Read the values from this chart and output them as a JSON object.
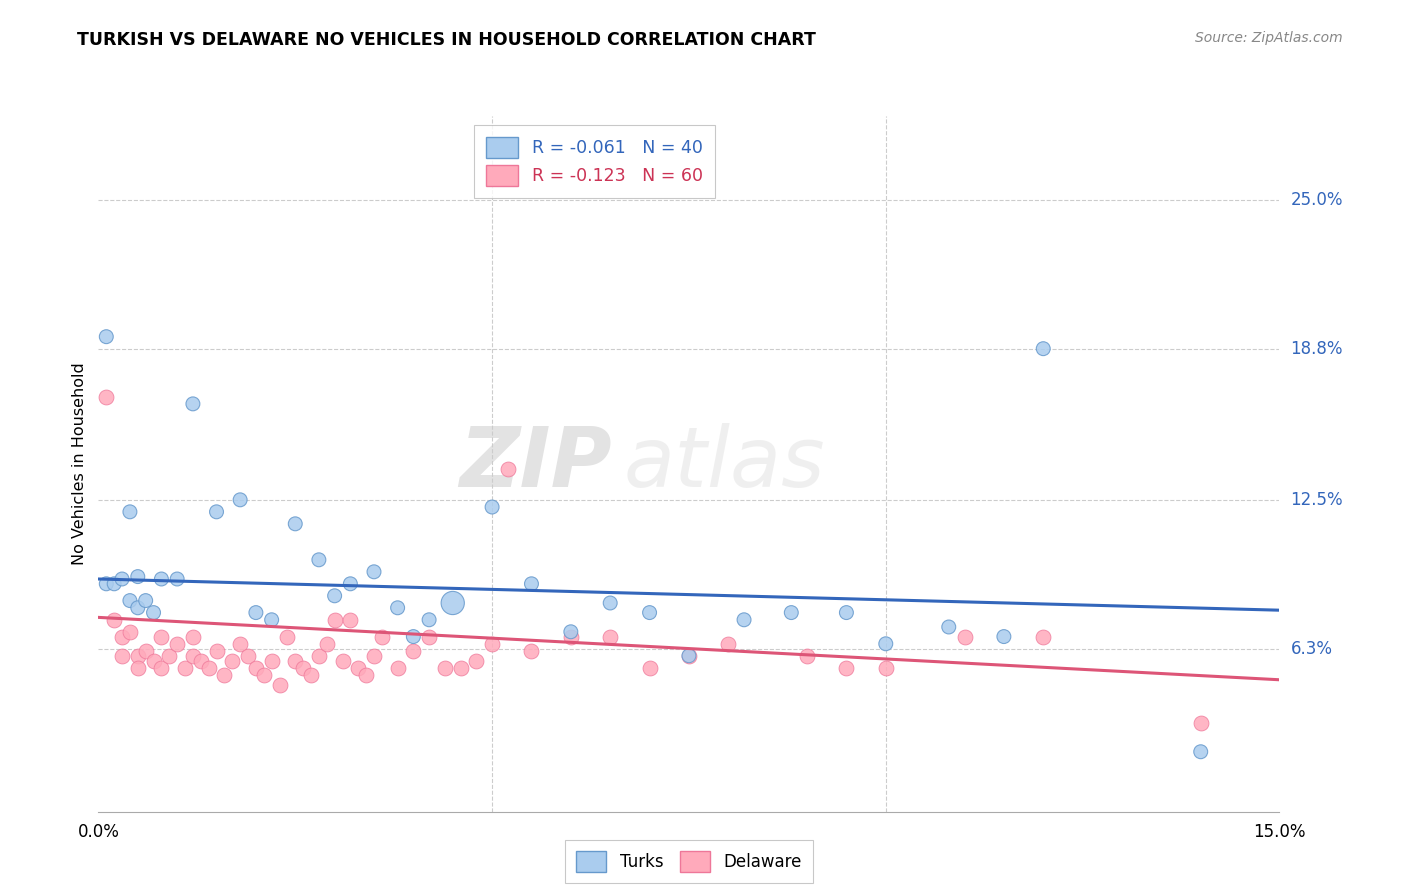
{
  "title": "TURKISH VS DELAWARE NO VEHICLES IN HOUSEHOLD CORRELATION CHART",
  "source": "Source: ZipAtlas.com",
  "ylabel": "No Vehicles in Household",
  "x_min": 0.0,
  "x_max": 0.15,
  "y_min": -0.005,
  "y_max": 0.285,
  "x_ticks": [
    0.0,
    0.05,
    0.1,
    0.15
  ],
  "x_tick_labels": [
    "0.0%",
    "",
    "",
    "15.0%"
  ],
  "y_tick_vals_right": [
    0.063,
    0.125,
    0.188,
    0.25
  ],
  "y_tick_labels_right": [
    "6.3%",
    "12.5%",
    "18.8%",
    "25.0%"
  ],
  "blue_scatter_color": "#aaccee",
  "blue_edge_color": "#6699cc",
  "pink_scatter_color": "#ffaabb",
  "pink_edge_color": "#ee7799",
  "blue_line_color": "#3366bb",
  "pink_line_color": "#dd5577",
  "blue_line_start_y": 0.092,
  "blue_line_end_y": 0.079,
  "pink_line_start_y": 0.076,
  "pink_line_end_y": 0.05,
  "legend1_text": "R = -0.061   N = 40",
  "legend2_text": "R = -0.123   N = 60",
  "legend1_color": "#3366bb",
  "legend2_color": "#cc3355",
  "grid_color": "#cccccc",
  "turks_x": [
    0.001,
    0.001,
    0.002,
    0.003,
    0.004,
    0.004,
    0.005,
    0.005,
    0.006,
    0.007,
    0.008,
    0.01,
    0.012,
    0.015,
    0.018,
    0.02,
    0.022,
    0.025,
    0.028,
    0.03,
    0.032,
    0.035,
    0.038,
    0.04,
    0.042,
    0.045,
    0.05,
    0.055,
    0.06,
    0.065,
    0.07,
    0.075,
    0.082,
    0.088,
    0.095,
    0.1,
    0.108,
    0.115,
    0.12,
    0.14
  ],
  "turks_y": [
    0.193,
    0.09,
    0.09,
    0.092,
    0.083,
    0.12,
    0.093,
    0.08,
    0.083,
    0.078,
    0.092,
    0.092,
    0.165,
    0.12,
    0.125,
    0.078,
    0.075,
    0.115,
    0.1,
    0.085,
    0.09,
    0.095,
    0.08,
    0.068,
    0.075,
    0.082,
    0.122,
    0.09,
    0.07,
    0.082,
    0.078,
    0.06,
    0.075,
    0.078,
    0.078,
    0.065,
    0.072,
    0.068,
    0.188,
    0.02
  ],
  "turks_size": [
    100,
    100,
    100,
    100,
    100,
    100,
    100,
    100,
    100,
    100,
    100,
    100,
    100,
    100,
    100,
    100,
    100,
    100,
    100,
    100,
    100,
    100,
    100,
    100,
    100,
    280,
    100,
    100,
    100,
    100,
    100,
    100,
    100,
    100,
    100,
    100,
    100,
    100,
    100,
    100
  ],
  "delaware_x": [
    0.001,
    0.002,
    0.003,
    0.003,
    0.004,
    0.005,
    0.005,
    0.006,
    0.007,
    0.008,
    0.008,
    0.009,
    0.01,
    0.011,
    0.012,
    0.012,
    0.013,
    0.014,
    0.015,
    0.016,
    0.017,
    0.018,
    0.019,
    0.02,
    0.021,
    0.022,
    0.023,
    0.024,
    0.025,
    0.026,
    0.027,
    0.028,
    0.029,
    0.03,
    0.031,
    0.032,
    0.033,
    0.034,
    0.035,
    0.036,
    0.038,
    0.04,
    0.042,
    0.044,
    0.046,
    0.048,
    0.05,
    0.052,
    0.055,
    0.06,
    0.065,
    0.07,
    0.075,
    0.08,
    0.09,
    0.095,
    0.1,
    0.11,
    0.12,
    0.14
  ],
  "delaware_y": [
    0.168,
    0.075,
    0.068,
    0.06,
    0.07,
    0.06,
    0.055,
    0.062,
    0.058,
    0.068,
    0.055,
    0.06,
    0.065,
    0.055,
    0.068,
    0.06,
    0.058,
    0.055,
    0.062,
    0.052,
    0.058,
    0.065,
    0.06,
    0.055,
    0.052,
    0.058,
    0.048,
    0.068,
    0.058,
    0.055,
    0.052,
    0.06,
    0.065,
    0.075,
    0.058,
    0.075,
    0.055,
    0.052,
    0.06,
    0.068,
    0.055,
    0.062,
    0.068,
    0.055,
    0.055,
    0.058,
    0.065,
    0.138,
    0.062,
    0.068,
    0.068,
    0.055,
    0.06,
    0.065,
    0.06,
    0.055,
    0.055,
    0.068,
    0.068,
    0.032
  ]
}
